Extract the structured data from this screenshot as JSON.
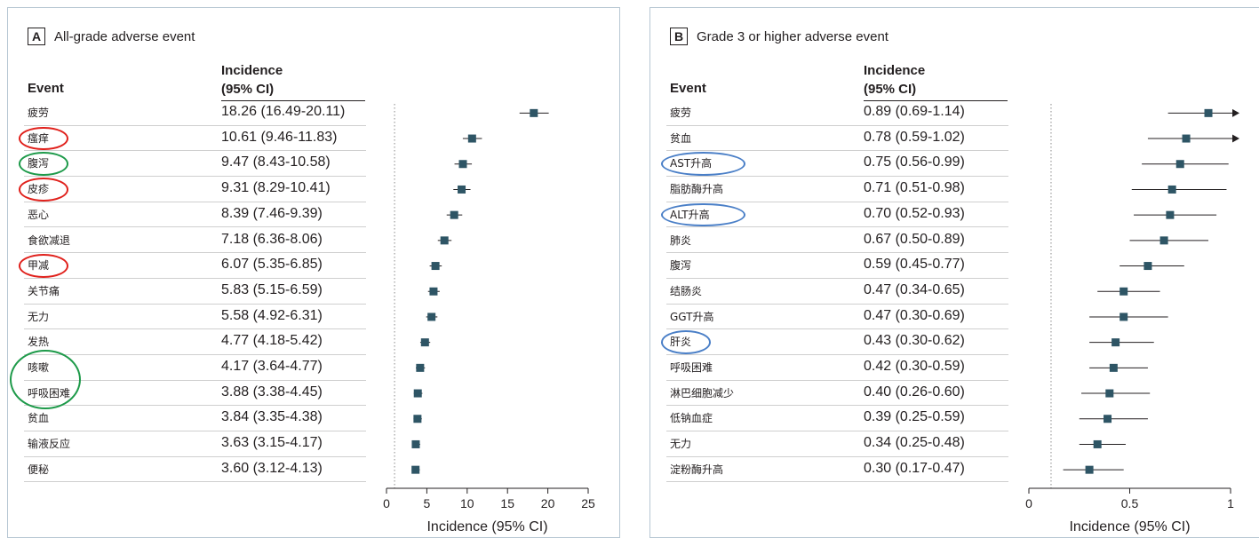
{
  "chart_data": [
    {
      "type": "forest",
      "panel_letter": "A",
      "title": "All-grade adverse event",
      "col_event": "Event",
      "col_incidence": [
        "Incidence",
        "(95% CI)"
      ],
      "xlabel": "Incidence (95% CI)",
      "xlim": [
        0,
        25
      ],
      "ticks": [
        0,
        5,
        10,
        15,
        20,
        25
      ],
      "ref_line": 1,
      "grid": false,
      "rows": [
        {
          "event": "疲劳",
          "label": "18.26 (16.49-20.11)",
          "est": 18.26,
          "lo": 16.49,
          "hi": 20.11,
          "mark": ""
        },
        {
          "event": "瘙痒",
          "label": "10.61 (9.46-11.83)",
          "est": 10.61,
          "lo": 9.46,
          "hi": 11.83,
          "mark": "red"
        },
        {
          "event": "腹泻",
          "label": "9.47 (8.43-10.58)",
          "est": 9.47,
          "lo": 8.43,
          "hi": 10.58,
          "mark": "green"
        },
        {
          "event": "皮疹",
          "label": "9.31 (8.29-10.41)",
          "est": 9.31,
          "lo": 8.29,
          "hi": 10.41,
          "mark": "red"
        },
        {
          "event": "恶心",
          "label": "8.39 (7.46-9.39)",
          "est": 8.39,
          "lo": 7.46,
          "hi": 9.39,
          "mark": ""
        },
        {
          "event": "食欲减退",
          "label": "7.18 (6.36-8.06)",
          "est": 7.18,
          "lo": 6.36,
          "hi": 8.06,
          "mark": ""
        },
        {
          "event": "甲减",
          "label": "6.07 (5.35-6.85)",
          "est": 6.07,
          "lo": 5.35,
          "hi": 6.85,
          "mark": "red"
        },
        {
          "event": "关节痛",
          "label": "5.83 (5.15-6.59)",
          "est": 5.83,
          "lo": 5.15,
          "hi": 6.59,
          "mark": ""
        },
        {
          "event": "无力",
          "label": "5.58 (4.92-6.31)",
          "est": 5.58,
          "lo": 4.92,
          "hi": 6.31,
          "mark": ""
        },
        {
          "event": "发热",
          "label": "4.77 (4.18-5.42)",
          "est": 4.77,
          "lo": 4.18,
          "hi": 5.42,
          "mark": ""
        },
        {
          "event": "咳嗽",
          "label": "4.17 (3.64-4.77)",
          "est": 4.17,
          "lo": 3.64,
          "hi": 4.77,
          "mark": ""
        },
        {
          "event": "呼吸困难",
          "label": "3.88 (3.38-4.45)",
          "est": 3.88,
          "lo": 3.38,
          "hi": 4.45,
          "mark": ""
        },
        {
          "event": "贫血",
          "label": "3.84 (3.35-4.38)",
          "est": 3.84,
          "lo": 3.35,
          "hi": 4.38,
          "mark": ""
        },
        {
          "event": "输液反应",
          "label": "3.63 (3.15-4.17)",
          "est": 3.63,
          "lo": 3.15,
          "hi": 4.17,
          "mark": ""
        },
        {
          "event": "便秘",
          "label": "3.60 (3.12-4.13)",
          "est": 3.6,
          "lo": 3.12,
          "hi": 4.13,
          "mark": ""
        }
      ],
      "group_marks": [
        {
          "rows": [
            10,
            11
          ],
          "color": "green"
        }
      ]
    },
    {
      "type": "forest",
      "panel_letter": "B",
      "title": "Grade 3 or higher adverse event",
      "col_event": "Event",
      "col_incidence": [
        "Incidence",
        "(95% CI)"
      ],
      "xlabel": "Incidence (95% CI)",
      "xlim": [
        0,
        1
      ],
      "ticks": [
        0,
        0.5,
        1
      ],
      "ref_line": 0.11,
      "grid": false,
      "rows": [
        {
          "event": "疲劳",
          "label": "0.89 (0.69-1.14)",
          "est": 0.89,
          "lo": 0.69,
          "hi": 1.14,
          "mark": ""
        },
        {
          "event": "贫血",
          "label": "0.78 (0.59-1.02)",
          "est": 0.78,
          "lo": 0.59,
          "hi": 1.02,
          "mark": ""
        },
        {
          "event": "AST升高",
          "label": "0.75 (0.56-0.99)",
          "est": 0.75,
          "lo": 0.56,
          "hi": 0.99,
          "mark": "blue"
        },
        {
          "event": "脂肪酶升高",
          "label": "0.71 (0.51-0.98)",
          "est": 0.71,
          "lo": 0.51,
          "hi": 0.98,
          "mark": ""
        },
        {
          "event": "ALT升高",
          "label": "0.70 (0.52-0.93)",
          "est": 0.7,
          "lo": 0.52,
          "hi": 0.93,
          "mark": "blue"
        },
        {
          "event": "肺炎",
          "label": "0.67 (0.50-0.89)",
          "est": 0.67,
          "lo": 0.5,
          "hi": 0.89,
          "mark": ""
        },
        {
          "event": "腹泻",
          "label": "0.59 (0.45-0.77)",
          "est": 0.59,
          "lo": 0.45,
          "hi": 0.77,
          "mark": ""
        },
        {
          "event": "结肠炎",
          "label": "0.47 (0.34-0.65)",
          "est": 0.47,
          "lo": 0.34,
          "hi": 0.65,
          "mark": ""
        },
        {
          "event": "GGT升高",
          "label": "0.47 (0.30-0.69)",
          "est": 0.47,
          "lo": 0.3,
          "hi": 0.69,
          "mark": ""
        },
        {
          "event": "肝炎",
          "label": "0.43 (0.30-0.62)",
          "est": 0.43,
          "lo": 0.3,
          "hi": 0.62,
          "mark": "blue"
        },
        {
          "event": "呼吸困难",
          "label": "0.42 (0.30-0.59)",
          "est": 0.42,
          "lo": 0.3,
          "hi": 0.59,
          "mark": ""
        },
        {
          "event": "淋巴细胞减少",
          "label": "0.40 (0.26-0.60)",
          "est": 0.4,
          "lo": 0.26,
          "hi": 0.6,
          "mark": ""
        },
        {
          "event": "低钠血症",
          "label": "0.39 (0.25-0.59)",
          "est": 0.39,
          "lo": 0.25,
          "hi": 0.59,
          "mark": ""
        },
        {
          "event": "无力",
          "label": "0.34 (0.25-0.48)",
          "est": 0.34,
          "lo": 0.25,
          "hi": 0.48,
          "mark": ""
        },
        {
          "event": "淀粉酶升高",
          "label": "0.30 (0.17-0.47)",
          "est": 0.3,
          "lo": 0.17,
          "hi": 0.47,
          "mark": ""
        }
      ],
      "group_marks": []
    }
  ],
  "colors": {
    "point": "#2e5565",
    "ci_line": "#231f20",
    "red": "#e0211c",
    "green": "#1e9a4a",
    "blue": "#4a7fc7"
  }
}
